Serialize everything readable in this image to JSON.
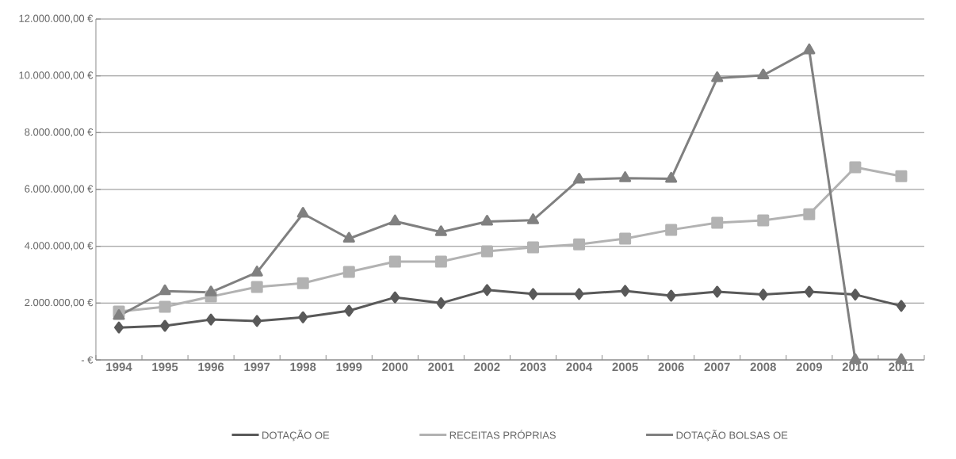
{
  "chart_data": {
    "type": "line",
    "categories": [
      "1994",
      "1995",
      "1996",
      "1997",
      "1998",
      "1999",
      "2000",
      "2001",
      "2002",
      "2003",
      "2004",
      "2005",
      "2006",
      "2007",
      "2008",
      "2009",
      "2010",
      "2011"
    ],
    "series": [
      {
        "name": "DOTAÇÃO OE",
        "color": "#595959",
        "marker": "diamond",
        "values": [
          1140000,
          1200000,
          1420000,
          1370000,
          1500000,
          1730000,
          2200000,
          2000000,
          2460000,
          2320000,
          2320000,
          2430000,
          2260000,
          2400000,
          2300000,
          2400000,
          2300000,
          1900000
        ]
      },
      {
        "name": "RECEITAS PRÓPRIAS",
        "color": "#b2b2b2",
        "marker": "square",
        "values": [
          1700000,
          1870000,
          2230000,
          2570000,
          2700000,
          3100000,
          3460000,
          3460000,
          3820000,
          3960000,
          4070000,
          4270000,
          4580000,
          4830000,
          4910000,
          5130000,
          6780000,
          6470000
        ]
      },
      {
        "name": "DOTAÇÃO BOLSAS OE",
        "color": "#808080",
        "marker": "triangle",
        "values": [
          1550000,
          2420000,
          2380000,
          3080000,
          5150000,
          4270000,
          4880000,
          4500000,
          4870000,
          4920000,
          6350000,
          6400000,
          6380000,
          9920000,
          10020000,
          10900000,
          0,
          0
        ]
      }
    ],
    "ylim": [
      0,
      12000000
    ],
    "yticks": [
      {
        "value": 0,
        "label": "-   €"
      },
      {
        "value": 2000000,
        "label": "2.000.000,00 €"
      },
      {
        "value": 4000000,
        "label": "4.000.000,00 €"
      },
      {
        "value": 6000000,
        "label": "6.000.000,00 €"
      },
      {
        "value": 8000000,
        "label": "8.000.000,00 €"
      },
      {
        "value": 10000000,
        "label": "10.000.000,00 €"
      },
      {
        "value": 12000000,
        "label": "12.000.000,00 €"
      }
    ],
    "grid": "y",
    "legend": "bottom"
  }
}
